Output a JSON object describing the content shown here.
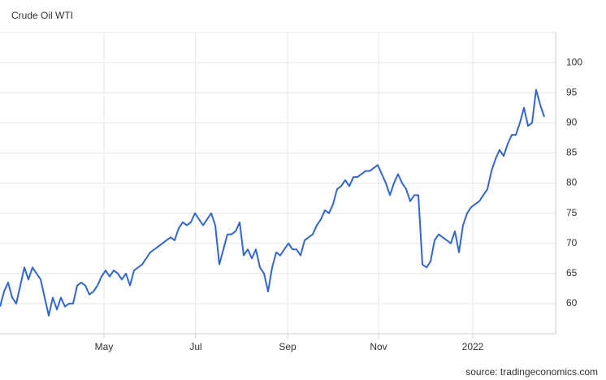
{
  "chart_data": {
    "type": "line",
    "title": "Crude Oil WTI",
    "source": "source: tradingeconomics.com",
    "series": [
      {
        "name": "Crude Oil WTI",
        "color": "#3366cc",
        "values": [
          59.5,
          62,
          63.5,
          61,
          60,
          63,
          66,
          64,
          66,
          65,
          64,
          61,
          58,
          61,
          59,
          61,
          59.5,
          60,
          60,
          63,
          63.5,
          63,
          61.5,
          62,
          63,
          64.5,
          65.5,
          64.5,
          65.5,
          65,
          64,
          65,
          63,
          65.5,
          66,
          66.5,
          67.5,
          68.5,
          69,
          69.5,
          70,
          70.5,
          71,
          70.5,
          72.5,
          73.5,
          73,
          73.5,
          75,
          74,
          73,
          74,
          75,
          73,
          66.5,
          69,
          71.5,
          71.5,
          72,
          73.5,
          68,
          69,
          67.5,
          69,
          66,
          65,
          62,
          66,
          68.5,
          68,
          69,
          70,
          69,
          69,
          68,
          70.5,
          71,
          71.5,
          73,
          74,
          75.5,
          75,
          76.5,
          79,
          79.5,
          80.5,
          79.5,
          81,
          81,
          81.5,
          82,
          82,
          82.5,
          83,
          81.5,
          80,
          78,
          80,
          81.5,
          80,
          79,
          77,
          78,
          78,
          66.5,
          66,
          67,
          70.5,
          71.5,
          71,
          70.5,
          70,
          72,
          68.5,
          73,
          75,
          76,
          76.5,
          77,
          78,
          79,
          82,
          84,
          85.5,
          84.5,
          86.5,
          88,
          88,
          90,
          92.5,
          89.5,
          90,
          95.5,
          93,
          91
        ]
      }
    ],
    "xlim": [
      0,
      136.8
    ],
    "xticks": [
      {
        "value": 25.6,
        "label": "May"
      },
      {
        "value": 48.2,
        "label": "Jul"
      },
      {
        "value": 70.8,
        "label": "Sep"
      },
      {
        "value": 93.2,
        "label": "Nov"
      },
      {
        "value": 116.4,
        "label": "2022"
      }
    ],
    "ylim": [
      55,
      105
    ],
    "yticks": [
      60,
      65,
      70,
      75,
      80,
      85,
      90,
      95,
      100
    ],
    "grid": true
  }
}
